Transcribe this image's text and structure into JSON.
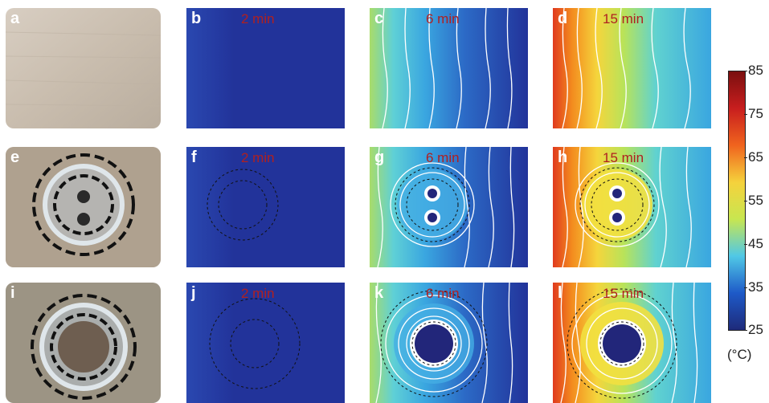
{
  "panels": [
    {
      "letter": "a",
      "time": ""
    },
    {
      "letter": "b",
      "time": "2 min"
    },
    {
      "letter": "c",
      "time": "6 min"
    },
    {
      "letter": "d",
      "time": "15 min"
    },
    {
      "letter": "e",
      "time": ""
    },
    {
      "letter": "f",
      "time": "2 min"
    },
    {
      "letter": "g",
      "time": "6 min"
    },
    {
      "letter": "h",
      "time": "15 min"
    },
    {
      "letter": "i",
      "time": ""
    },
    {
      "letter": "j",
      "time": "2 min"
    },
    {
      "letter": "k",
      "time": "6 min"
    },
    {
      "letter": "l",
      "time": "15 min"
    }
  ],
  "colorbar": {
    "ticks": [
      "85",
      "75",
      "65",
      "55",
      "45",
      "35",
      "25"
    ],
    "unit": "(°C)",
    "min": 25,
    "max": 85,
    "colors": [
      "#7a0f0f",
      "#c81e1e",
      "#f0641e",
      "#f5d23c",
      "#c8e650",
      "#50c8e6",
      "#1e5ac8",
      "#1e2a7a"
    ]
  }
}
